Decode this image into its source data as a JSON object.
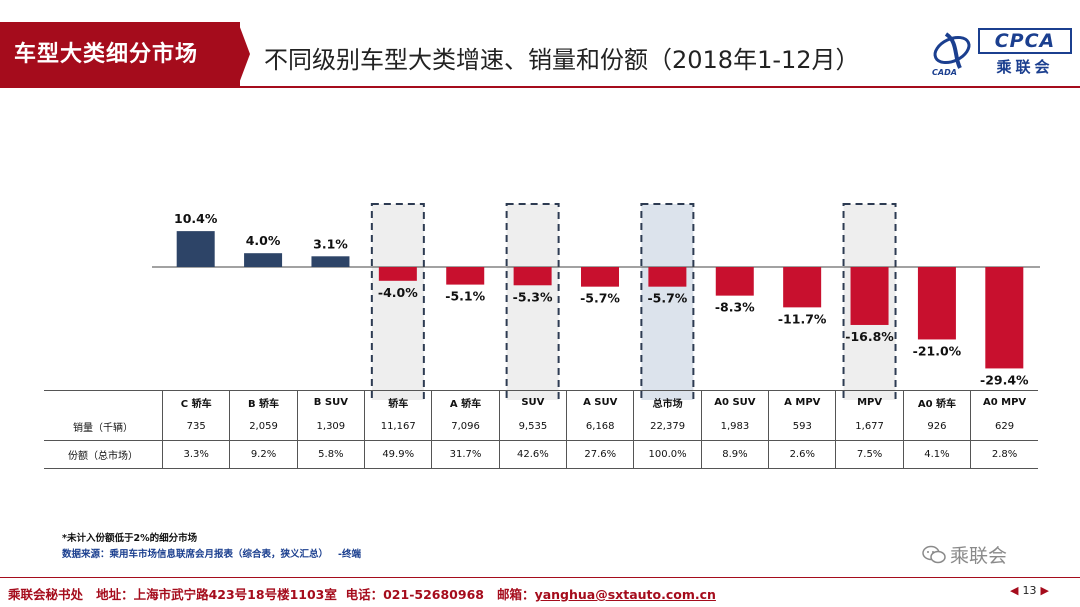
{
  "header": {
    "section_tab": "车型大类细分市场",
    "title": "不同级别车型大类增速、销量和份额（2018年1-12月）"
  },
  "logo": {
    "abbr": "CPCA",
    "cn": "乘联会",
    "small": "CADA"
  },
  "chart_data": {
    "type": "bar",
    "title": "不同级别车型大类增速、销量和份额（2018年1-12月）",
    "categories": [
      "C 轿车",
      "B 轿车",
      "B SUV",
      "轿车",
      "A 轿车",
      "SUV",
      "A SUV",
      "总市场",
      "A0 SUV",
      "A MPV",
      "MPV",
      "A0 轿车",
      "A0 MPV"
    ],
    "values": [
      10.4,
      4.0,
      3.1,
      -4.0,
      -5.1,
      -5.3,
      -5.7,
      -5.7,
      -8.3,
      -11.7,
      -16.8,
      -21.0,
      -29.4
    ],
    "value_labels": [
      "10.4%",
      "4.0%",
      "3.1%",
      "-4.0%",
      "-5.1%",
      "-5.3%",
      "-5.7%",
      "-5.7%",
      "-8.3%",
      "-11.7%",
      "-16.8%",
      "-21.0%",
      "-29.4%"
    ],
    "unit": "%",
    "highlighted": [
      "轿车",
      "SUV",
      "总市场",
      "MPV"
    ],
    "colors": {
      "positive": "#2d4467",
      "negative": "#c8102e",
      "highlight_box": "#2d3b52",
      "total_fill": "#dce3ec",
      "other_fill": "#eeeeee"
    },
    "ylim": [
      -30,
      12
    ],
    "grid": false,
    "legend": "none"
  },
  "table": {
    "rows": [
      {
        "label": "销量（千辆）",
        "values": [
          "735",
          "2,059",
          "1,309",
          "11,167",
          "7,096",
          "9,535",
          "6,168",
          "22,379",
          "1,983",
          "593",
          "1,677",
          "926",
          "629"
        ]
      },
      {
        "label": "份额（总市场）",
        "values": [
          "3.3%",
          "9.2%",
          "5.8%",
          "49.9%",
          "31.7%",
          "42.6%",
          "27.6%",
          "100.0%",
          "8.9%",
          "2.6%",
          "7.5%",
          "4.1%",
          "2.8%"
        ]
      }
    ]
  },
  "notes": {
    "line1": "*未计入份额低于2%的细分市场",
    "line2": "数据来源：乘用车市场信息联席会月报表（综合表，狭义汇总）",
    "line2_suffix": "-终端"
  },
  "watermark": "乘联会",
  "footer": {
    "org": "乘联会秘书处",
    "address_label": "地址：",
    "address": "上海市武宁路423号18号楼1103室",
    "phone_label": "电话：",
    "phone": "021-52680968",
    "email_label": "邮箱：",
    "email": "yanghua@sxtauto.com.cn",
    "page": "13"
  }
}
